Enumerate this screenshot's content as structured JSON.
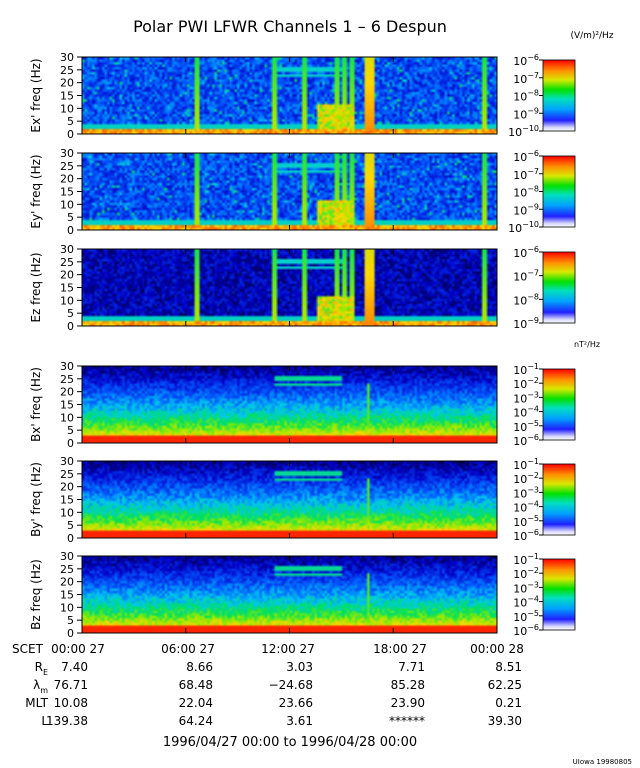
{
  "chart_data": {
    "type": "heatmap",
    "title": "Polar PWI LFWR Channels 1 – 6 Despun",
    "unit_labels": {
      "electric": "(V/m)²/Hz",
      "magnetic": "nT²/Hz"
    },
    "frequency_axis": {
      "ylim": [
        0,
        30
      ],
      "ticks": [
        0,
        5,
        10,
        15,
        20,
        25,
        30
      ]
    },
    "time_axis": {
      "range": [
        "1996-04-27 00:00",
        "1996-04-28 00:00"
      ],
      "ticks_hours": [
        0,
        6,
        12,
        18,
        24
      ]
    },
    "panels": [
      {
        "name": "Ex'",
        "ylabel": "Ex' freq (Hz)",
        "kind": "electric",
        "colorbar_exp_range": [
          -10,
          -6
        ],
        "colorbar_tick_exps": [
          -6,
          -7,
          -8,
          -9,
          -10
        ]
      },
      {
        "name": "Ey'",
        "ylabel": "Ey' freq (Hz)",
        "kind": "electric",
        "colorbar_exp_range": [
          -10,
          -6
        ],
        "colorbar_tick_exps": [
          -6,
          -7,
          -8,
          -9,
          -10
        ]
      },
      {
        "name": "Ez",
        "ylabel": "Ez freq (Hz)",
        "kind": "electric_sparse",
        "colorbar_exp_range": [
          -9,
          -6
        ],
        "colorbar_tick_exps": [
          -6,
          -7,
          -8,
          -9
        ]
      },
      {
        "name": "Bx'",
        "ylabel": "Bx' freq (Hz)",
        "kind": "magnetic",
        "colorbar_exp_range": [
          -6,
          -1
        ],
        "colorbar_tick_exps": [
          -1,
          -2,
          -3,
          -4,
          -5,
          -6
        ]
      },
      {
        "name": "By'",
        "ylabel": "By' freq (Hz)",
        "kind": "magnetic",
        "colorbar_exp_range": [
          -6,
          -1
        ],
        "colorbar_tick_exps": [
          -1,
          -2,
          -3,
          -4,
          -5,
          -6
        ]
      },
      {
        "name": "Bz",
        "ylabel": "Bz freq (Hz)",
        "kind": "magnetic",
        "colorbar_exp_range": [
          -6,
          -1
        ],
        "colorbar_tick_exps": [
          -1,
          -2,
          -3,
          -4,
          -5,
          -6
        ]
      }
    ],
    "spectral_features": {
      "broadband_bursts_hours": [
        6.65,
        11.15,
        12.9,
        14.7,
        15.2,
        15.55,
        16.5,
        23.25
      ],
      "main_burst_hours": [
        16.4,
        16.9
      ],
      "band_lines_hours": [
        11.2,
        15.1
      ],
      "band_lines_freq_hz": [
        23,
        25.5
      ],
      "magnetic_spike_hour": 16.55
    }
  },
  "ephemeris": {
    "header": "SCET",
    "time_labels": [
      "00:00 27",
      "06:00 27",
      "12:00 27",
      "18:00 27",
      "00:00 28"
    ],
    "rows": [
      {
        "label": "R",
        "label_sub": "E",
        "values": [
          "7.40",
          "8.66",
          "3.03",
          "7.71",
          "8.51"
        ]
      },
      {
        "label": "λ",
        "label_sub": "m",
        "values": [
          "76.71",
          "68.48",
          "−24.68",
          "85.28",
          "62.25"
        ]
      },
      {
        "label": "MLT",
        "label_sub": "",
        "values": [
          "10.08",
          "22.04",
          "23.66",
          "23.90",
          "0.21"
        ]
      },
      {
        "label": "L",
        "label_sub": "",
        "values": [
          "139.38",
          "64.24",
          "3.61",
          "******",
          "39.30"
        ]
      }
    ]
  },
  "date_range_label": "1996/04/27 00:00 to 1996/04/28 00:00",
  "footer_credit": "UIowa 19980805"
}
